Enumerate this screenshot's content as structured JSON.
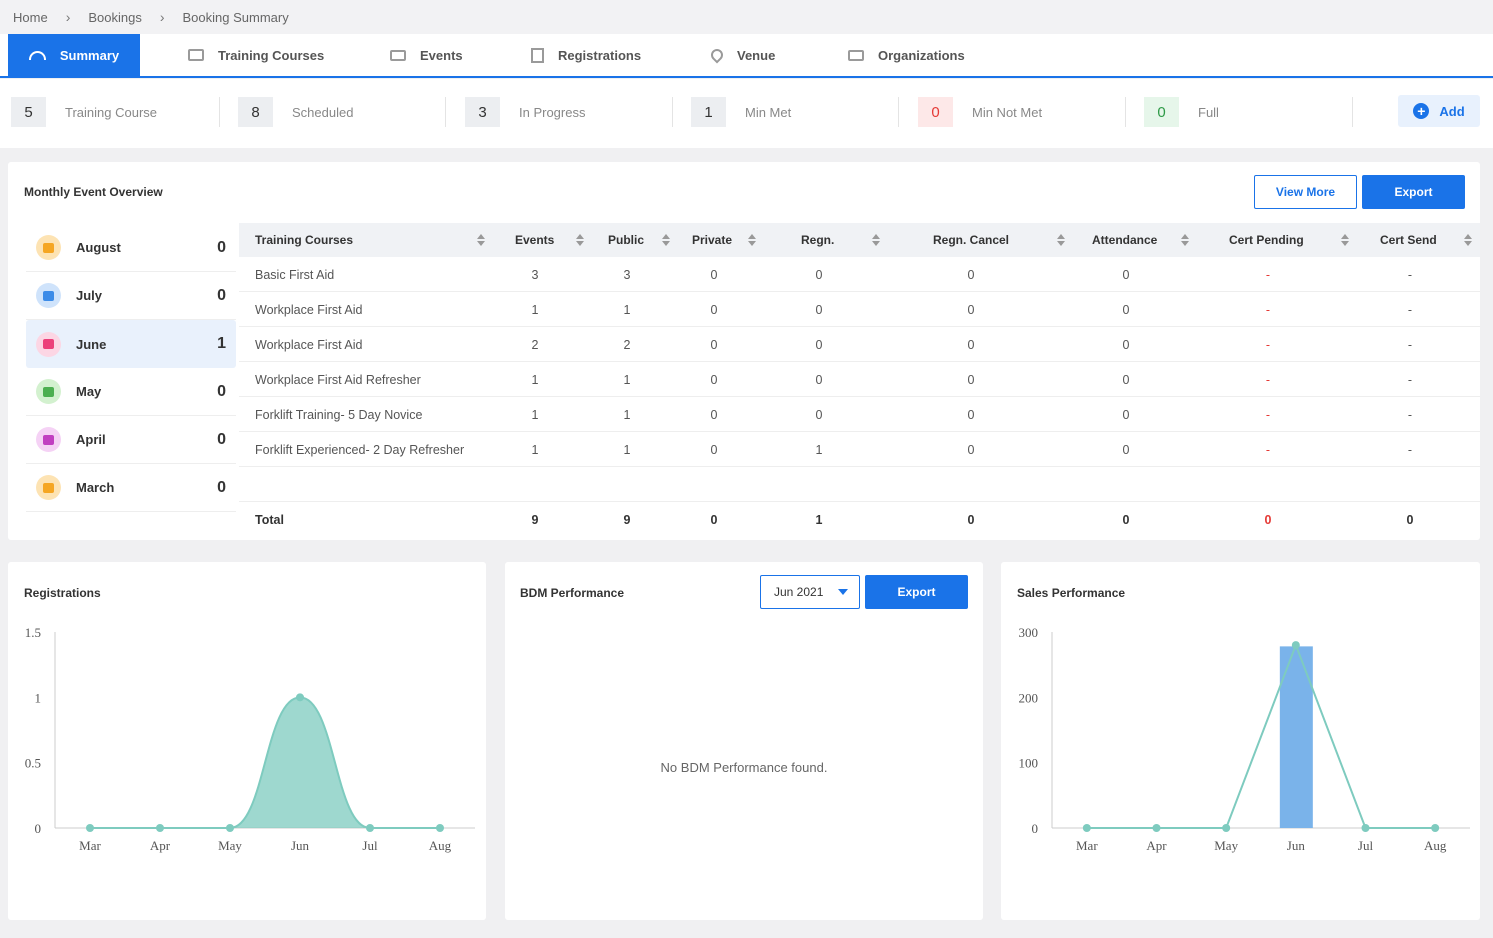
{
  "breadcrumb": [
    "Home",
    "Bookings",
    "Booking Summary"
  ],
  "tabs": [
    {
      "label": "Summary",
      "icon": "gauge-icon",
      "active": true
    },
    {
      "label": "Training Courses",
      "icon": "book-icon"
    },
    {
      "label": "Events",
      "icon": "monitor-icon"
    },
    {
      "label": "Registrations",
      "icon": "document-icon"
    },
    {
      "label": "Venue",
      "icon": "location-pin-icon"
    },
    {
      "label": "Organizations",
      "icon": "briefcase-icon"
    }
  ],
  "stats": [
    {
      "value": "5",
      "label": "Training Course",
      "tone": "neutral"
    },
    {
      "value": "8",
      "label": "Scheduled",
      "tone": "neutral"
    },
    {
      "value": "3",
      "label": "In Progress",
      "tone": "neutral"
    },
    {
      "value": "1",
      "label": "Min Met",
      "tone": "neutral"
    },
    {
      "value": "0",
      "label": "Min Not Met",
      "tone": "red"
    },
    {
      "value": "0",
      "label": "Full",
      "tone": "green"
    }
  ],
  "add_button": {
    "label": "Add",
    "icon": "plus-circle-icon"
  },
  "overview": {
    "title": "Monthly Event Overview",
    "view_more": "View More",
    "export": "Export",
    "months": [
      {
        "name": "August",
        "count": "0",
        "color": "#fde3b3",
        "icon_color": "#f5a623"
      },
      {
        "name": "July",
        "count": "0",
        "color": "#cfe3fb",
        "icon_color": "#3b8be8"
      },
      {
        "name": "June",
        "count": "1",
        "color": "#fcd6e4",
        "icon_color": "#ec407a",
        "active": true
      },
      {
        "name": "May",
        "count": "0",
        "color": "#d3f1cf",
        "icon_color": "#4caf50"
      },
      {
        "name": "April",
        "count": "0",
        "color": "#f5d2f5",
        "icon_color": "#c13fc1"
      },
      {
        "name": "March",
        "count": "0",
        "color": "#fde3b3",
        "icon_color": "#f5a623"
      }
    ],
    "columns": [
      "Training Courses",
      "Events",
      "Public",
      "Private",
      "Regn.",
      "Regn. Cancel",
      "Attendance",
      "Cert Pending",
      "Cert Send"
    ],
    "rows": [
      [
        "Basic First Aid",
        "3",
        "3",
        "0",
        "0",
        "0",
        "0",
        "-",
        "-"
      ],
      [
        "Workplace First Aid",
        "1",
        "1",
        "0",
        "0",
        "0",
        "0",
        "-",
        "-"
      ],
      [
        "Workplace First Aid",
        "2",
        "2",
        "0",
        "0",
        "0",
        "0",
        "-",
        "-"
      ],
      [
        "Workplace First Aid Refresher",
        "1",
        "1",
        "0",
        "0",
        "0",
        "0",
        "-",
        "-"
      ],
      [
        "Forklift Training- 5 Day Novice",
        "1",
        "1",
        "0",
        "0",
        "0",
        "0",
        "-",
        "-"
      ],
      [
        "Forklift Experienced- 2 Day Refresher",
        "1",
        "1",
        "0",
        "1",
        "0",
        "0",
        "-",
        "-"
      ]
    ],
    "total": [
      "Total",
      "9",
      "9",
      "0",
      "1",
      "0",
      "0",
      "0",
      "0"
    ]
  },
  "registrations": {
    "title": "Registrations"
  },
  "bdm": {
    "title": "BDM Performance",
    "select_value": "Jun 2021",
    "export": "Export",
    "empty": "No BDM Performance found."
  },
  "sales": {
    "title": "Sales Performance"
  },
  "chart_data": [
    {
      "type": "area",
      "title": "Registrations",
      "categories": [
        "Mar",
        "Apr",
        "May",
        "Jun",
        "Jul",
        "Aug"
      ],
      "values": [
        0,
        0,
        0,
        1,
        0,
        0
      ],
      "yticks": [
        "0",
        "0.5",
        "1",
        "1.5"
      ],
      "ylim": [
        0,
        1.5
      ],
      "color": "#7ecbbf"
    },
    {
      "type": "bar",
      "title": "Sales Performance",
      "categories": [
        "Mar",
        "Apr",
        "May",
        "Jun",
        "Jul",
        "Aug"
      ],
      "series": [
        {
          "type": "bar",
          "values": [
            0,
            0,
            0,
            278,
            0,
            0
          ],
          "color": "#7ab3ea"
        },
        {
          "type": "line",
          "values": [
            0,
            0,
            0,
            280,
            0,
            0
          ],
          "color": "#7ecbbf"
        }
      ],
      "yticks": [
        "0",
        "100",
        "200",
        "300"
      ],
      "ylim": [
        0,
        300
      ]
    }
  ]
}
